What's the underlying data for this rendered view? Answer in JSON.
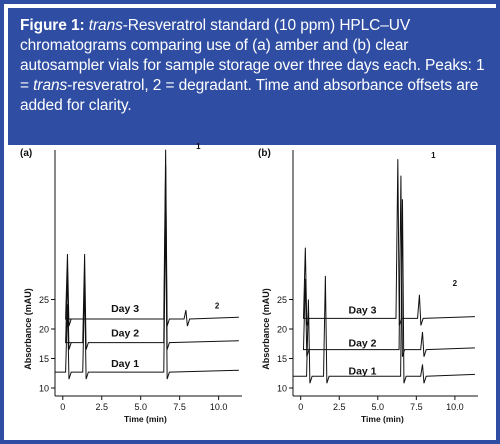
{
  "caption": {
    "label": "Figure 1:",
    "seg1": "trans",
    "seg2": "-Resveratrol standard (10 ppm) HPLC–UV chromatograms comparing use of (a) amber and (b) clear autosampler vials for sample storage over three days each. Peaks: 1 = ",
    "seg3": "trans",
    "seg4": "-resveratrol, 2 = degradant. Time and absorbance offsets are added for clarity."
  },
  "colors": {
    "accent": "#2f4ea3",
    "trace": "#111111"
  },
  "chart_data": [
    {
      "panel_label": "(a)",
      "type": "line",
      "xlabel": "Time (min)",
      "ylabel": "Absorbance (mAU)",
      "xlim": [
        -0.5,
        11.5
      ],
      "ylim": [
        10,
        30
      ],
      "x_ticks": [
        0,
        2.5,
        5.0,
        7.5,
        10.0
      ],
      "x_tick_labels": [
        "0",
        "2.5",
        "5.0",
        "7.5",
        "10.0"
      ],
      "y_ticks": [
        10,
        15,
        20,
        25
      ],
      "y_tick_labels": [
        "10",
        "15",
        "20",
        "25"
      ],
      "peak_labels": [
        {
          "text": "1",
          "x": 8.7,
          "y": 50.5
        },
        {
          "text": "2",
          "x": 9.9,
          "y": 23.5
        }
      ],
      "series": [
        {
          "name": "Day 1",
          "x_offset": 0.0,
          "y_offset": 12.7,
          "label_x": 3.1,
          "label_y": 13.6,
          "peaks": [
            {
              "x": 0.3,
              "h": 11.5
            },
            {
              "x": 1.4,
              "h": 15
            },
            {
              "x": 6.6,
              "h": 28
            }
          ]
        },
        {
          "name": "Day 2",
          "x_offset": 1.0,
          "y_offset": 17.7,
          "label_x": 3.1,
          "label_y": 18.7,
          "peaks": [
            {
              "x": 0.3,
              "h": 11.5
            },
            {
              "x": 1.4,
              "h": 15
            },
            {
              "x": 6.6,
              "h": 30
            }
          ]
        },
        {
          "name": "Day 3",
          "x_offset": 2.1,
          "y_offset": 21.7,
          "label_x": 3.1,
          "label_y": 22.9,
          "peaks": [
            {
              "x": 0.3,
              "h": 11
            },
            {
              "x": 6.6,
              "h": 28.7
            },
            {
              "x": 7.9,
              "h": 1.5
            }
          ]
        }
      ]
    },
    {
      "panel_label": "(b)",
      "type": "line",
      "xlabel": "Time (min)",
      "ylabel": "Absorbance (mAU)",
      "xlim": [
        -0.5,
        11.5
      ],
      "ylim": [
        10,
        30
      ],
      "x_ticks": [
        0,
        2.5,
        5.0,
        7.5,
        10.0
      ],
      "x_tick_labels": [
        "0",
        "2.5",
        "5.0",
        "7.5",
        "10.0"
      ],
      "y_ticks": [
        10,
        15,
        20,
        25
      ],
      "y_tick_labels": [
        "10",
        "15",
        "20",
        "25"
      ],
      "peak_labels": [
        {
          "text": "1",
          "x": 8.6,
          "y": 49.0
        },
        {
          "text": "2",
          "x": 10.0,
          "y": 27.3
        }
      ],
      "series": [
        {
          "name": "Day 1",
          "x_offset": 0.0,
          "y_offset": 12.0,
          "label_x": 3.1,
          "label_y": 12.3,
          "peaks": [
            {
              "x": 0.5,
              "h": 13
            },
            {
              "x": 1.6,
              "h": 17
            },
            {
              "x": 6.6,
              "h": 30
            },
            {
              "x": 7.9,
              "h": 2
            }
          ]
        },
        {
          "name": "Day 2",
          "x_offset": 1.0,
          "y_offset": 16.5,
          "label_x": 3.1,
          "label_y": 17.0,
          "peaks": [
            {
              "x": 0.3,
              "h": 12
            },
            {
              "x": 6.5,
              "h": 29.5
            },
            {
              "x": 7.9,
              "h": 3
            }
          ]
        },
        {
          "name": "Day 3",
          "x_offset": 2.3,
          "y_offset": 21.8,
          "label_x": 3.1,
          "label_y": 22.6,
          "peaks": [
            {
              "x": 0.3,
              "h": 12
            },
            {
              "x": 6.3,
              "h": 27
            },
            {
              "x": 7.7,
              "h": 4
            }
          ]
        }
      ]
    }
  ]
}
